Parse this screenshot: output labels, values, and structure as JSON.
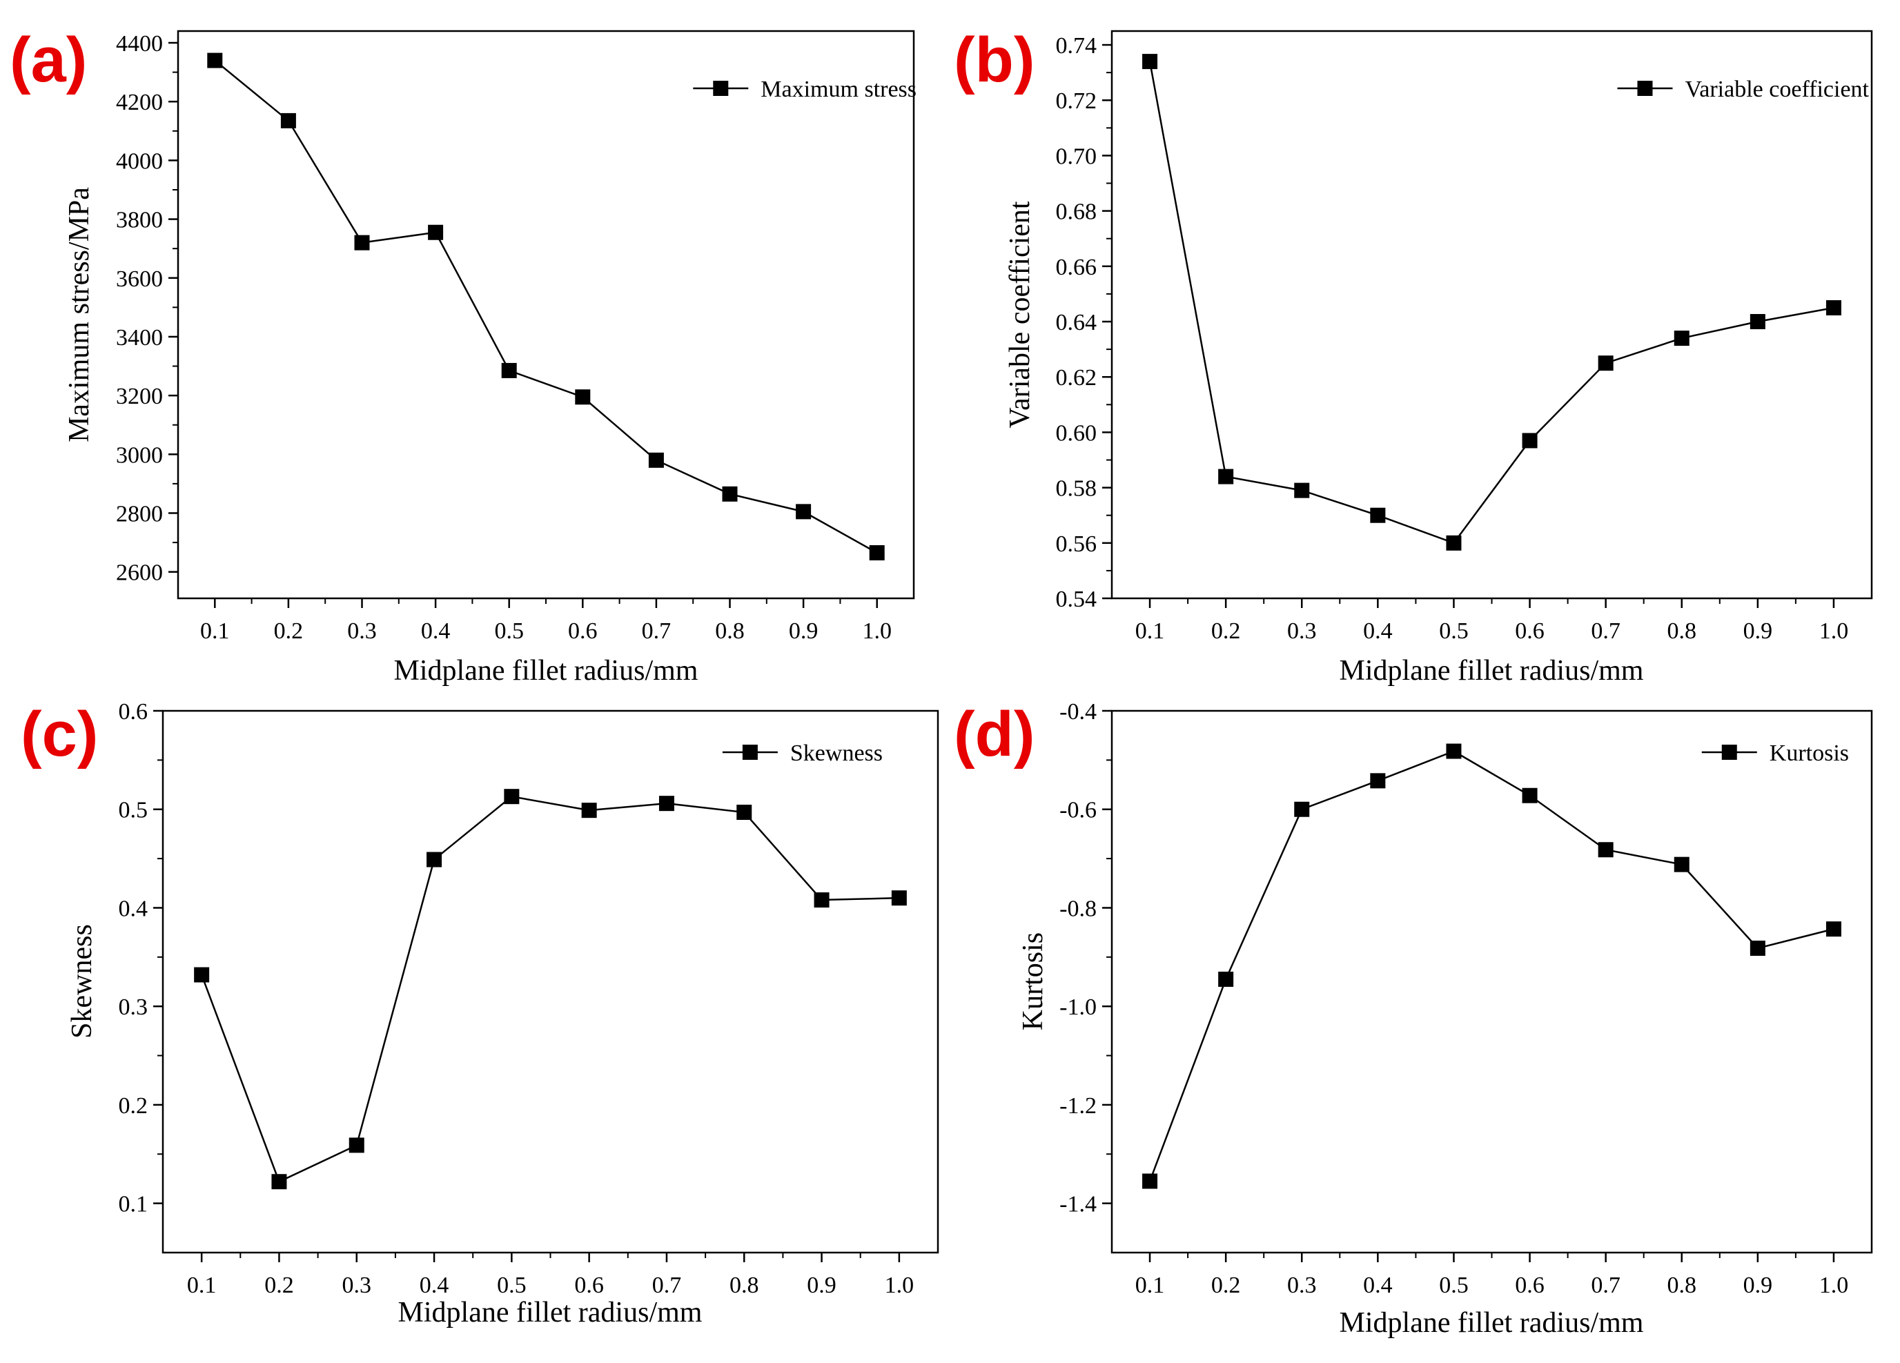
{
  "colors": {
    "panel_label": "#e60000",
    "line": "#000000",
    "marker": "#000000",
    "axis": "#000000"
  },
  "chart_data": [
    {
      "panel": "(a)",
      "type": "line",
      "x": [
        0.1,
        0.2,
        0.3,
        0.4,
        0.5,
        0.6,
        0.7,
        0.8,
        0.9,
        1.0
      ],
      "series": [
        {
          "name": "Maximum stress",
          "values": [
            4340,
            4135,
            3720,
            3755,
            3285,
            3195,
            2980,
            2865,
            2805,
            2665
          ]
        }
      ],
      "xlabel": "Midplane fillet radius/mm",
      "ylabel": "Maximum stress/MPa",
      "xlim": [
        0.05,
        1.05
      ],
      "ylim": [
        2510,
        4440
      ],
      "x_ticks": [
        "0.1",
        "0.2",
        "0.3",
        "0.4",
        "0.5",
        "0.6",
        "0.7",
        "0.8",
        "0.9",
        "1.0"
      ],
      "y_ticks": [
        "2600",
        "2800",
        "3000",
        "3200",
        "3400",
        "3600",
        "3800",
        "4000",
        "4200",
        "4400"
      ],
      "legend": "top-right",
      "marker": "square",
      "grid": false
    },
    {
      "panel": "(b)",
      "type": "line",
      "x": [
        0.1,
        0.2,
        0.3,
        0.4,
        0.5,
        0.6,
        0.7,
        0.8,
        0.9,
        1.0
      ],
      "series": [
        {
          "name": "Variable coefficient",
          "values": [
            0.734,
            0.584,
            0.579,
            0.57,
            0.56,
            0.597,
            0.625,
            0.634,
            0.64,
            0.645
          ]
        }
      ],
      "xlabel": "Midplane fillet radius/mm",
      "ylabel": "Variable coefficient",
      "xlim": [
        0.05,
        1.05
      ],
      "ylim": [
        0.54,
        0.745
      ],
      "x_ticks": [
        "0.1",
        "0.2",
        "0.3",
        "0.4",
        "0.5",
        "0.6",
        "0.7",
        "0.8",
        "0.9",
        "1.0"
      ],
      "y_ticks": [
        "0.54",
        "0.56",
        "0.58",
        "0.60",
        "0.62",
        "0.64",
        "0.66",
        "0.68",
        "0.70",
        "0.72",
        "0.74"
      ],
      "legend": "top-right",
      "marker": "square",
      "grid": false
    },
    {
      "panel": "(c)",
      "type": "line",
      "x": [
        0.1,
        0.2,
        0.3,
        0.4,
        0.5,
        0.6,
        0.7,
        0.8,
        0.9,
        1.0
      ],
      "series": [
        {
          "name": "Skewness",
          "values": [
            0.332,
            0.122,
            0.159,
            0.449,
            0.513,
            0.499,
            0.506,
            0.497,
            0.408,
            0.41
          ]
        }
      ],
      "xlabel": "Midplane fillet radius/mm",
      "ylabel": "Skewness",
      "xlim": [
        0.05,
        1.05
      ],
      "ylim": [
        0.05,
        0.6
      ],
      "x_ticks": [
        "0.1",
        "0.2",
        "0.3",
        "0.4",
        "0.5",
        "0.6",
        "0.7",
        "0.8",
        "0.9",
        "1.0"
      ],
      "y_ticks": [
        "0.1",
        "0.2",
        "0.3",
        "0.4",
        "0.5",
        "0.6"
      ],
      "legend": "top-right",
      "marker": "square",
      "grid": false
    },
    {
      "panel": "(d)",
      "type": "line",
      "x": [
        0.1,
        0.2,
        0.3,
        0.4,
        0.5,
        0.6,
        0.7,
        0.8,
        0.9,
        1.0
      ],
      "series": [
        {
          "name": "Kurtosis",
          "values": [
            -1.355,
            -0.945,
            -0.6,
            -0.542,
            -0.482,
            -0.572,
            -0.682,
            -0.712,
            -0.882,
            -0.843
          ]
        }
      ],
      "xlabel": "Midplane fillet radius/mm",
      "ylabel": "Kurtosis",
      "xlim": [
        0.05,
        1.05
      ],
      "ylim": [
        -1.5,
        -0.4
      ],
      "x_ticks": [
        "0.1",
        "0.2",
        "0.3",
        "0.4",
        "0.5",
        "0.6",
        "0.7",
        "0.8",
        "0.9",
        "1.0"
      ],
      "y_ticks": [
        "-1.4",
        "-1.2",
        "-1.0",
        "-0.8",
        "-0.6",
        "-0.4"
      ],
      "legend": "top-right",
      "marker": "square",
      "grid": false
    }
  ]
}
